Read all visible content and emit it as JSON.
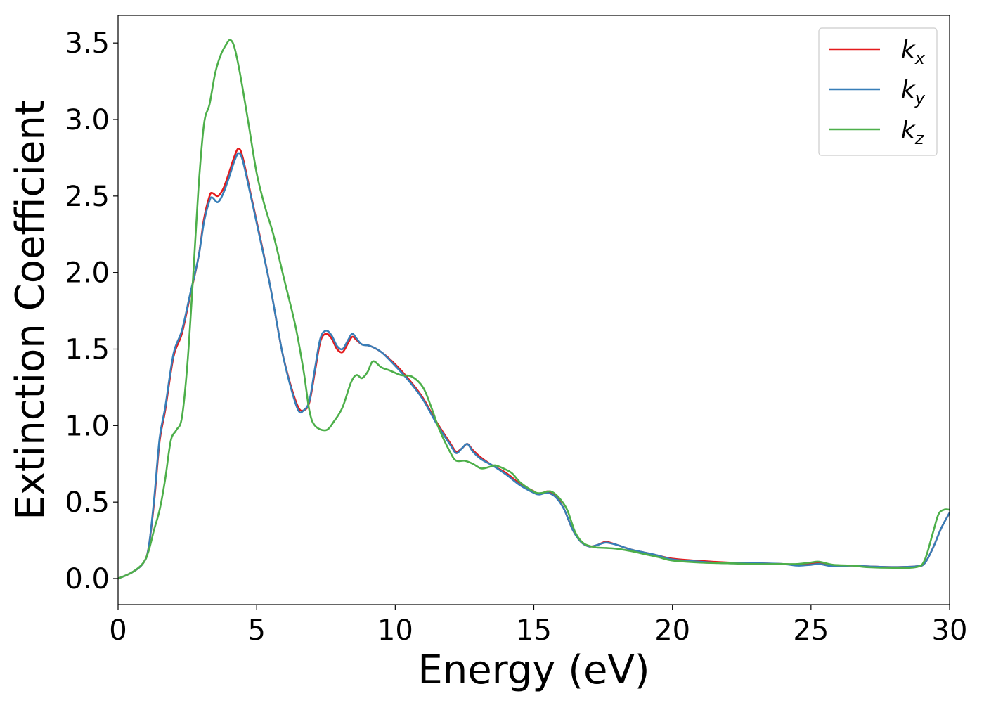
{
  "chart_data": {
    "type": "line",
    "xlabel": "Energy (eV)",
    "ylabel": "Extinction Coefficient",
    "xlim": [
      0,
      30
    ],
    "ylim": [
      -0.17,
      3.68
    ],
    "xticks": [
      "0",
      "5",
      "10",
      "15",
      "20",
      "25",
      "30"
    ],
    "xtick_values": [
      0,
      5,
      10,
      15,
      20,
      25,
      30
    ],
    "yticks": [
      "0.0",
      "0.5",
      "1.0",
      "1.5",
      "2.0",
      "2.5",
      "3.0",
      "3.5"
    ],
    "ytick_values": [
      0,
      0.5,
      1.0,
      1.5,
      2.0,
      2.5,
      3.0,
      3.5
    ],
    "grid": false,
    "legend_position": "top-right",
    "series": [
      {
        "name": "k",
        "subscript": "x",
        "color": "#e41a1c",
        "points": [
          [
            0,
            0.0
          ],
          [
            0.5,
            0.04
          ],
          [
            0.9,
            0.1
          ],
          [
            1.1,
            0.2
          ],
          [
            1.3,
            0.5
          ],
          [
            1.5,
            0.9
          ],
          [
            1.7,
            1.1
          ],
          [
            2.0,
            1.45
          ],
          [
            2.3,
            1.6
          ],
          [
            2.6,
            1.85
          ],
          [
            2.9,
            2.1
          ],
          [
            3.1,
            2.35
          ],
          [
            3.3,
            2.5
          ],
          [
            3.4,
            2.52
          ],
          [
            3.6,
            2.5
          ],
          [
            3.8,
            2.55
          ],
          [
            4.0,
            2.65
          ],
          [
            4.2,
            2.76
          ],
          [
            4.35,
            2.81
          ],
          [
            4.5,
            2.75
          ],
          [
            4.8,
            2.5
          ],
          [
            5.1,
            2.25
          ],
          [
            5.5,
            1.9
          ],
          [
            5.9,
            1.5
          ],
          [
            6.2,
            1.28
          ],
          [
            6.5,
            1.12
          ],
          [
            6.7,
            1.1
          ],
          [
            6.9,
            1.15
          ],
          [
            7.1,
            1.35
          ],
          [
            7.3,
            1.55
          ],
          [
            7.5,
            1.6
          ],
          [
            7.7,
            1.57
          ],
          [
            7.9,
            1.5
          ],
          [
            8.1,
            1.48
          ],
          [
            8.3,
            1.54
          ],
          [
            8.45,
            1.58
          ],
          [
            8.6,
            1.56
          ],
          [
            8.8,
            1.53
          ],
          [
            9.1,
            1.52
          ],
          [
            9.5,
            1.48
          ],
          [
            10.0,
            1.4
          ],
          [
            10.5,
            1.3
          ],
          [
            11.0,
            1.18
          ],
          [
            11.5,
            1.02
          ],
          [
            12.0,
            0.88
          ],
          [
            12.2,
            0.83
          ],
          [
            12.4,
            0.85
          ],
          [
            12.6,
            0.88
          ],
          [
            12.8,
            0.84
          ],
          [
            13.1,
            0.79
          ],
          [
            13.5,
            0.74
          ],
          [
            14.0,
            0.69
          ],
          [
            14.5,
            0.62
          ],
          [
            15.0,
            0.57
          ],
          [
            15.2,
            0.55
          ],
          [
            15.5,
            0.57
          ],
          [
            15.8,
            0.54
          ],
          [
            16.1,
            0.45
          ],
          [
            16.4,
            0.32
          ],
          [
            16.7,
            0.24
          ],
          [
            17.0,
            0.21
          ],
          [
            17.3,
            0.22
          ],
          [
            17.6,
            0.24
          ],
          [
            18.0,
            0.22
          ],
          [
            18.5,
            0.19
          ],
          [
            19.0,
            0.17
          ],
          [
            19.5,
            0.15
          ],
          [
            20.0,
            0.13
          ],
          [
            21.0,
            0.115
          ],
          [
            22.0,
            0.105
          ],
          [
            23.0,
            0.1
          ],
          [
            24.0,
            0.095
          ],
          [
            24.5,
            0.09
          ],
          [
            25.0,
            0.095
          ],
          [
            25.3,
            0.1
          ],
          [
            25.8,
            0.085
          ],
          [
            26.5,
            0.085
          ],
          [
            27.0,
            0.08
          ],
          [
            28.0,
            0.075
          ],
          [
            28.8,
            0.08
          ],
          [
            29.1,
            0.1
          ],
          [
            29.4,
            0.2
          ],
          [
            29.7,
            0.33
          ],
          [
            30.0,
            0.43
          ]
        ]
      },
      {
        "name": "k",
        "subscript": "y",
        "color": "#377eb8",
        "points": [
          [
            0,
            0.0
          ],
          [
            0.5,
            0.04
          ],
          [
            0.9,
            0.1
          ],
          [
            1.1,
            0.2
          ],
          [
            1.3,
            0.52
          ],
          [
            1.5,
            0.92
          ],
          [
            1.7,
            1.12
          ],
          [
            2.0,
            1.47
          ],
          [
            2.3,
            1.62
          ],
          [
            2.6,
            1.86
          ],
          [
            2.9,
            2.1
          ],
          [
            3.1,
            2.33
          ],
          [
            3.3,
            2.47
          ],
          [
            3.4,
            2.49
          ],
          [
            3.6,
            2.46
          ],
          [
            3.8,
            2.52
          ],
          [
            4.0,
            2.62
          ],
          [
            4.2,
            2.73
          ],
          [
            4.35,
            2.78
          ],
          [
            4.5,
            2.73
          ],
          [
            4.8,
            2.49
          ],
          [
            5.1,
            2.24
          ],
          [
            5.5,
            1.9
          ],
          [
            5.9,
            1.5
          ],
          [
            6.2,
            1.27
          ],
          [
            6.5,
            1.1
          ],
          [
            6.7,
            1.1
          ],
          [
            6.9,
            1.16
          ],
          [
            7.1,
            1.37
          ],
          [
            7.3,
            1.57
          ],
          [
            7.5,
            1.62
          ],
          [
            7.7,
            1.59
          ],
          [
            7.9,
            1.52
          ],
          [
            8.1,
            1.5
          ],
          [
            8.3,
            1.56
          ],
          [
            8.45,
            1.6
          ],
          [
            8.6,
            1.57
          ],
          [
            8.8,
            1.53
          ],
          [
            9.1,
            1.52
          ],
          [
            9.5,
            1.48
          ],
          [
            10.0,
            1.39
          ],
          [
            10.5,
            1.29
          ],
          [
            11.0,
            1.17
          ],
          [
            11.5,
            1.01
          ],
          [
            12.0,
            0.87
          ],
          [
            12.2,
            0.82
          ],
          [
            12.4,
            0.85
          ],
          [
            12.6,
            0.88
          ],
          [
            12.8,
            0.83
          ],
          [
            13.1,
            0.78
          ],
          [
            13.5,
            0.74
          ],
          [
            14.0,
            0.68
          ],
          [
            14.5,
            0.61
          ],
          [
            15.0,
            0.56
          ],
          [
            15.2,
            0.55
          ],
          [
            15.5,
            0.56
          ],
          [
            15.8,
            0.53
          ],
          [
            16.1,
            0.45
          ],
          [
            16.4,
            0.32
          ],
          [
            16.7,
            0.24
          ],
          [
            17.0,
            0.21
          ],
          [
            17.3,
            0.22
          ],
          [
            17.6,
            0.235
          ],
          [
            18.0,
            0.22
          ],
          [
            18.5,
            0.19
          ],
          [
            19.0,
            0.17
          ],
          [
            19.5,
            0.15
          ],
          [
            20.0,
            0.125
          ],
          [
            21.0,
            0.11
          ],
          [
            22.0,
            0.1
          ],
          [
            23.0,
            0.1
          ],
          [
            24.0,
            0.095
          ],
          [
            24.5,
            0.085
          ],
          [
            25.0,
            0.09
          ],
          [
            25.3,
            0.095
          ],
          [
            25.8,
            0.08
          ],
          [
            26.5,
            0.085
          ],
          [
            27.0,
            0.08
          ],
          [
            28.0,
            0.075
          ],
          [
            28.8,
            0.08
          ],
          [
            29.1,
            0.1
          ],
          [
            29.4,
            0.2
          ],
          [
            29.7,
            0.33
          ],
          [
            30.0,
            0.43
          ]
        ]
      },
      {
        "name": "k",
        "subscript": "z",
        "color": "#4daf4a",
        "points": [
          [
            0,
            0.0
          ],
          [
            0.5,
            0.04
          ],
          [
            0.9,
            0.1
          ],
          [
            1.1,
            0.18
          ],
          [
            1.3,
            0.32
          ],
          [
            1.5,
            0.45
          ],
          [
            1.7,
            0.65
          ],
          [
            1.9,
            0.9
          ],
          [
            2.1,
            0.97
          ],
          [
            2.3,
            1.05
          ],
          [
            2.5,
            1.4
          ],
          [
            2.7,
            1.95
          ],
          [
            2.9,
            2.55
          ],
          [
            3.1,
            2.97
          ],
          [
            3.3,
            3.1
          ],
          [
            3.5,
            3.3
          ],
          [
            3.7,
            3.42
          ],
          [
            3.9,
            3.49
          ],
          [
            4.05,
            3.52
          ],
          [
            4.2,
            3.47
          ],
          [
            4.4,
            3.3
          ],
          [
            4.7,
            2.98
          ],
          [
            5.0,
            2.65
          ],
          [
            5.3,
            2.43
          ],
          [
            5.6,
            2.25
          ],
          [
            6.0,
            1.95
          ],
          [
            6.4,
            1.65
          ],
          [
            6.7,
            1.35
          ],
          [
            6.9,
            1.1
          ],
          [
            7.1,
            1.0
          ],
          [
            7.5,
            0.97
          ],
          [
            7.8,
            1.03
          ],
          [
            8.1,
            1.12
          ],
          [
            8.4,
            1.28
          ],
          [
            8.6,
            1.33
          ],
          [
            8.8,
            1.31
          ],
          [
            9.0,
            1.35
          ],
          [
            9.2,
            1.42
          ],
          [
            9.5,
            1.38
          ],
          [
            9.8,
            1.36
          ],
          [
            10.2,
            1.33
          ],
          [
            10.6,
            1.32
          ],
          [
            11.0,
            1.25
          ],
          [
            11.3,
            1.12
          ],
          [
            11.6,
            0.97
          ],
          [
            12.0,
            0.82
          ],
          [
            12.2,
            0.77
          ],
          [
            12.5,
            0.77
          ],
          [
            12.8,
            0.75
          ],
          [
            13.1,
            0.72
          ],
          [
            13.4,
            0.73
          ],
          [
            13.6,
            0.74
          ],
          [
            13.9,
            0.72
          ],
          [
            14.2,
            0.69
          ],
          [
            14.5,
            0.63
          ],
          [
            14.8,
            0.59
          ],
          [
            15.1,
            0.56
          ],
          [
            15.3,
            0.56
          ],
          [
            15.6,
            0.57
          ],
          [
            15.9,
            0.53
          ],
          [
            16.2,
            0.45
          ],
          [
            16.5,
            0.3
          ],
          [
            16.8,
            0.23
          ],
          [
            17.2,
            0.205
          ],
          [
            17.6,
            0.2
          ],
          [
            18.0,
            0.195
          ],
          [
            18.5,
            0.18
          ],
          [
            19.0,
            0.16
          ],
          [
            19.5,
            0.14
          ],
          [
            20.0,
            0.118
          ],
          [
            21.0,
            0.105
          ],
          [
            22.0,
            0.1
          ],
          [
            23.0,
            0.095
          ],
          [
            24.0,
            0.095
          ],
          [
            24.5,
            0.095
          ],
          [
            25.0,
            0.105
          ],
          [
            25.3,
            0.11
          ],
          [
            25.8,
            0.09
          ],
          [
            26.5,
            0.085
          ],
          [
            27.0,
            0.075
          ],
          [
            28.0,
            0.07
          ],
          [
            28.8,
            0.075
          ],
          [
            29.1,
            0.12
          ],
          [
            29.4,
            0.3
          ],
          [
            29.6,
            0.42
          ],
          [
            29.8,
            0.45
          ],
          [
            30.0,
            0.45
          ]
        ]
      }
    ]
  }
}
